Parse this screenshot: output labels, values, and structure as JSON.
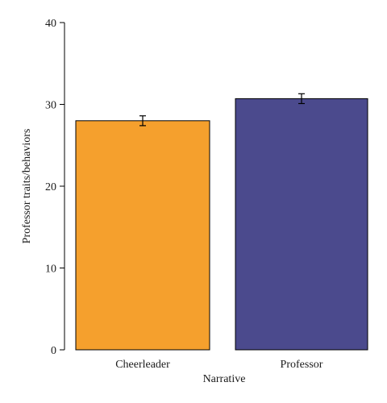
{
  "chart_data": {
    "type": "bar",
    "title": "",
    "xlabel": "Narrative",
    "ylabel": "Professor traits/behaviors",
    "ylim": [
      0,
      40
    ],
    "yticks": [
      0,
      10,
      20,
      30,
      40
    ],
    "categories": [
      "Cheerleader",
      "Professor"
    ],
    "values": [
      28.0,
      30.7
    ],
    "errors": [
      0.6,
      0.6
    ],
    "colors": [
      "#F5A02D",
      "#4B4A8D"
    ],
    "grid": false
  }
}
